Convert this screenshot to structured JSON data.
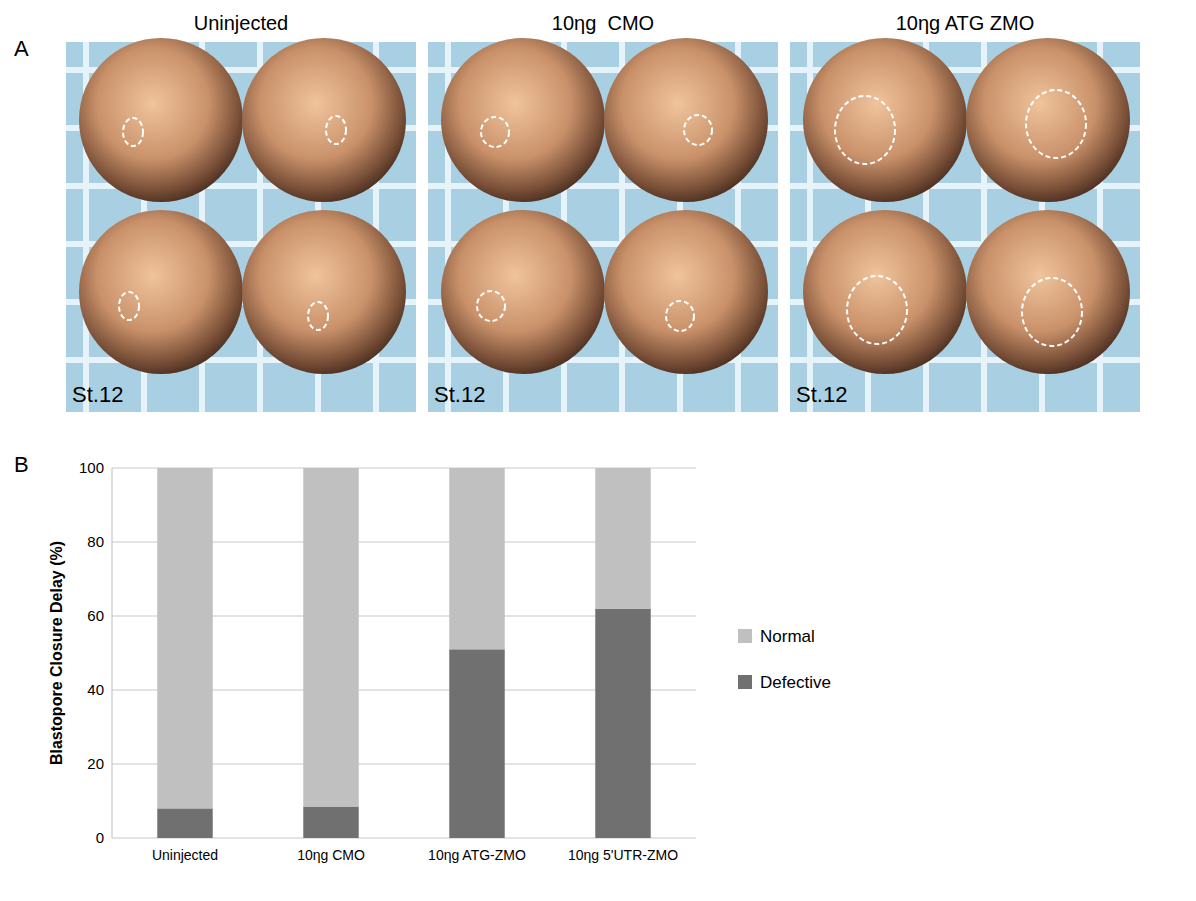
{
  "figure": {
    "panel_a": {
      "letter": "A",
      "photos": [
        {
          "title": "Uninjected",
          "stage": "St.12"
        },
        {
          "title": "10ηg  CMO",
          "stage": "St.12"
        },
        {
          "title": "10ηg ATG ZMO",
          "stage": "St.12"
        }
      ]
    },
    "panel_b": {
      "letter": "B"
    }
  },
  "chart_data": {
    "type": "bar",
    "stacked": true,
    "y_label": "Blastopore Closure Delay (%)",
    "categories": [
      "Uninjected",
      "10ηg CMO",
      "10ηg ATG-ZMO",
      "10ηg 5'UTR-ZMO"
    ],
    "series": [
      {
        "name": "Defective",
        "color": "#707070",
        "values": [
          8,
          8.5,
          51,
          62
        ]
      },
      {
        "name": "Normal",
        "color": "#c0c0c0",
        "values": [
          92,
          91.5,
          49,
          38
        ]
      }
    ],
    "ylim": [
      0,
      100
    ],
    "yticks": [
      0,
      20,
      40,
      60,
      80,
      100
    ],
    "grid": true,
    "legend": "right"
  }
}
